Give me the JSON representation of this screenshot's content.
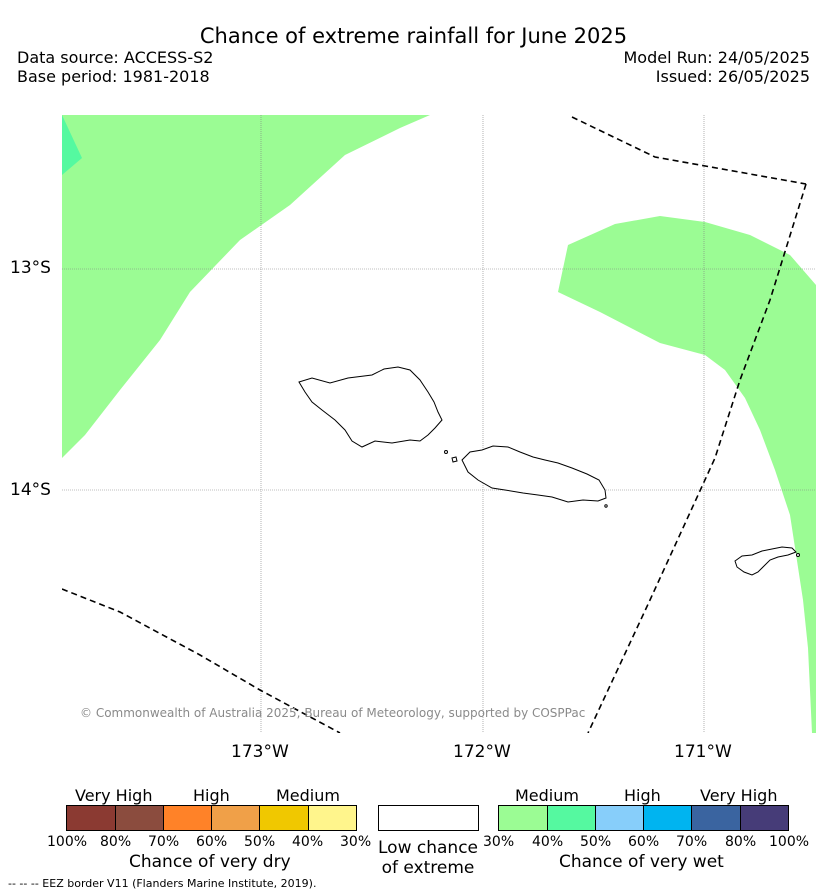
{
  "header": {
    "title": "Chance of extreme rainfall for June 2025",
    "data_source": "Data source: ACCESS-S2",
    "base_period": "Base period: 1981-2018",
    "model_run": "Model Run: 24/05/2025",
    "issued": "Issued: 26/05/2025"
  },
  "map": {
    "lat_labels": [
      "13°S",
      "14°S"
    ],
    "lon_labels": [
      "173°W",
      "172°W",
      "171°W"
    ],
    "copyright": "© Commonwealth of Australia 2025, Bureau of Meteorology, supported by COSPPac"
  },
  "legend": {
    "dry": {
      "group_labels": [
        "Very High",
        "High",
        "Medium"
      ],
      "ticks": [
        "100%",
        "80%",
        "70%",
        "60%",
        "50%",
        "40%",
        "30%"
      ],
      "title": "Chance of very dry",
      "colors": [
        "#8b3a32",
        "#8b4c3e",
        "#ff8228",
        "#f0a048",
        "#f0c800",
        "#fff58c"
      ]
    },
    "low": {
      "label": "Low chance of extreme",
      "color": "#ffffff"
    },
    "wet": {
      "group_labels": [
        "Medium",
        "High",
        "Very High"
      ],
      "ticks": [
        "30%",
        "40%",
        "50%",
        "60%",
        "70%",
        "80%",
        "100%"
      ],
      "title": "Chance of very wet",
      "colors": [
        "#9bfc94",
        "#55f9a0",
        "#87cefa",
        "#00b4f0",
        "#3a64a0",
        "#463c78"
      ]
    },
    "footnote": "--  --  -- EEZ border V11 (Flanders Marine Institute, 2019)."
  }
}
